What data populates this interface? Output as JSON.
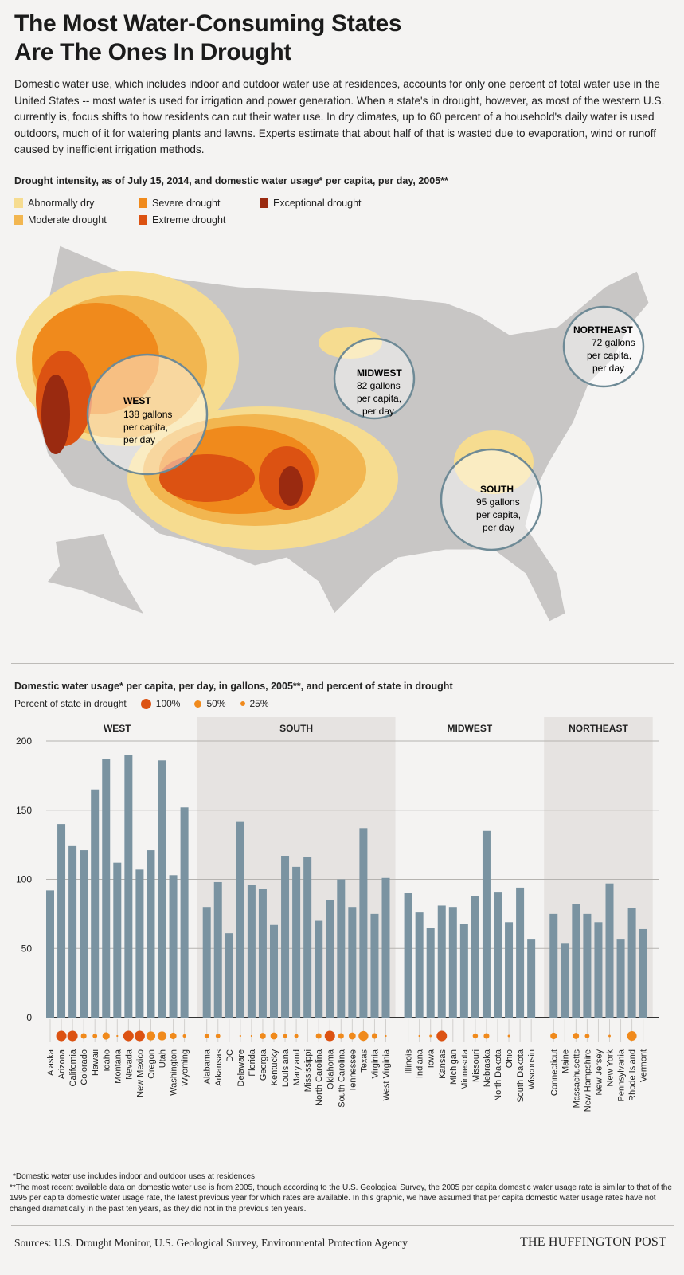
{
  "title_line1": "The Most Water-Consuming States",
  "title_line2": "Are The Ones In Drought",
  "intro": "Domestic water use, which includes indoor and outdoor water use at residences, accounts for only one percent of total water use in the United States -- most water is used for irrigation and power generation. When a state's in drought, however, as most of the western U.S. currently is, focus shifts to how residents can cut their water use. In dry climates, up to 60 percent of a household's daily water is used outdoors, much of it for watering plants and lawns. Experts estimate that about half of that is wasted due to evaporation, wind or runoff caused by inefficient irrigation methods.",
  "map": {
    "heading": "Drought intensity, as of July 15, 2014, and domestic water usage* per capita, per day, 2005**",
    "legend": [
      {
        "label": "Abnormally dry",
        "color": "#f6dc90"
      },
      {
        "label": "Moderate drought",
        "color": "#f2b650"
      },
      {
        "label": "Severe drought",
        "color": "#f08a1c"
      },
      {
        "label": "Extreme drought",
        "color": "#dc5212"
      },
      {
        "label": "Exceptional drought",
        "color": "#9a2a10"
      }
    ],
    "regions": [
      {
        "name": "WEST",
        "l1": "138 gallons",
        "l2": "per capita,",
        "l3": "per day"
      },
      {
        "name": "MIDWEST",
        "l1": "82 gallons",
        "l2": "per capita,",
        "l3": "per day"
      },
      {
        "name": "NORTHEAST",
        "l1": "72 gallons",
        "l2": "per capita,",
        "l3": "per day"
      },
      {
        "name": "SOUTH",
        "l1": "95 gallons",
        "l2": "per capita,",
        "l3": "per day"
      }
    ]
  },
  "chart_data": {
    "type": "bar",
    "title": "Domestic water usage* per capita, per day, in gallons, 2005**, and percent of state in drought",
    "dot_legend_label": "Percent of state in drought",
    "dot_legend": [
      {
        "label": "100%",
        "value": 100
      },
      {
        "label": "50%",
        "value": 50
      },
      {
        "label": "25%",
        "value": 25
      }
    ],
    "ylim": [
      0,
      200
    ],
    "yticks": [
      "0",
      "50",
      "100",
      "150",
      "200"
    ],
    "grid": true,
    "bar_color": "#7a93a1",
    "dot_color": "#f08a1c",
    "dot_color_full": "#dc5212",
    "groups": [
      {
        "name": "WEST",
        "shaded": false,
        "states": [
          {
            "name": "Alaska",
            "value": 92,
            "drought": 0
          },
          {
            "name": "Arizona",
            "value": 140,
            "drought": 100
          },
          {
            "name": "California",
            "value": 124,
            "drought": 100
          },
          {
            "name": "Colorado",
            "value": 121,
            "drought": 30
          },
          {
            "name": "Hawaii",
            "value": 165,
            "drought": 20
          },
          {
            "name": "Idaho",
            "value": 187,
            "drought": 50
          },
          {
            "name": "Montana",
            "value": 112,
            "drought": 3
          },
          {
            "name": "Nevada",
            "value": 190,
            "drought": 100
          },
          {
            "name": "New Mexico",
            "value": 107,
            "drought": 100
          },
          {
            "name": "Oregon",
            "value": 121,
            "drought": 75
          },
          {
            "name": "Utah",
            "value": 186,
            "drought": 75
          },
          {
            "name": "Washington",
            "value": 103,
            "drought": 40
          },
          {
            "name": "Wyoming",
            "value": 152,
            "drought": 10
          }
        ]
      },
      {
        "name": "SOUTH",
        "shaded": true,
        "states": [
          {
            "name": "Alabama",
            "value": 80,
            "drought": 20
          },
          {
            "name": "Arkansas",
            "value": 98,
            "drought": 20
          },
          {
            "name": "DC",
            "value": 61,
            "drought": 0
          },
          {
            "name": "Delaware",
            "value": 142,
            "drought": 3
          },
          {
            "name": "Florida",
            "value": 96,
            "drought": 3
          },
          {
            "name": "Georgia",
            "value": 93,
            "drought": 35
          },
          {
            "name": "Kentucky",
            "value": 67,
            "drought": 45
          },
          {
            "name": "Louisiana",
            "value": 117,
            "drought": 15
          },
          {
            "name": "Maryland",
            "value": 109,
            "drought": 15
          },
          {
            "name": "Mississippi",
            "value": 116,
            "drought": 0
          },
          {
            "name": "North Carolina",
            "value": 70,
            "drought": 30
          },
          {
            "name": "Oklahoma",
            "value": 85,
            "drought": 100
          },
          {
            "name": "South Carolina",
            "value": 100,
            "drought": 30
          },
          {
            "name": "Tennessee",
            "value": 80,
            "drought": 45
          },
          {
            "name": "Texas",
            "value": 137,
            "drought": 90
          },
          {
            "name": "Virginia",
            "value": 75,
            "drought": 30
          },
          {
            "name": "West Virginia",
            "value": 101,
            "drought": 3
          }
        ]
      },
      {
        "name": "MIDWEST",
        "shaded": false,
        "states": [
          {
            "name": "Illinois",
            "value": 90,
            "drought": 0
          },
          {
            "name": "Indiana",
            "value": 76,
            "drought": 3
          },
          {
            "name": "Iowa",
            "value": 65,
            "drought": 5
          },
          {
            "name": "Kansas",
            "value": 81,
            "drought": 100
          },
          {
            "name": "Michigan",
            "value": 80,
            "drought": 0
          },
          {
            "name": "Minnesota",
            "value": 68,
            "drought": 0
          },
          {
            "name": "Missouri",
            "value": 88,
            "drought": 25
          },
          {
            "name": "Nebraska",
            "value": 135,
            "drought": 30
          },
          {
            "name": "North Dakota",
            "value": 91,
            "drought": 0
          },
          {
            "name": "Ohio",
            "value": 69,
            "drought": 5
          },
          {
            "name": "South Dakota",
            "value": 94,
            "drought": 0
          },
          {
            "name": "Wisconsin",
            "value": 57,
            "drought": 0
          }
        ]
      },
      {
        "name": "NORTHEAST",
        "shaded": true,
        "states": [
          {
            "name": "Connecticut",
            "value": 75,
            "drought": 40
          },
          {
            "name": "Maine",
            "value": 54,
            "drought": 0
          },
          {
            "name": "Massachusetts",
            "value": 82,
            "drought": 35
          },
          {
            "name": "New Hampshire",
            "value": 75,
            "drought": 20
          },
          {
            "name": "New Jersey",
            "value": 69,
            "drought": 0
          },
          {
            "name": "New York",
            "value": 97,
            "drought": 5
          },
          {
            "name": "Pennsylvania",
            "value": 57,
            "drought": 0
          },
          {
            "name": "Rhode Island",
            "value": 79,
            "drought": 85
          },
          {
            "name": "Vermont",
            "value": 64,
            "drought": 0
          }
        ]
      }
    ]
  },
  "footnote1": "*Domestic water use includes indoor and outdoor uses at residences",
  "footnote2": "**The most recent available data on domestic water use is from 2005, though according to the U.S. Geological Survey, the 2005 per capita domestic water usage rate is similar to that of the 1995 per capita domestic water usage rate, the latest previous year for which rates are available. In this graphic, we have assumed that per capita domestic water usage rates have not changed dramatically in the past ten years, as they did not in the previous ten years.",
  "sources": "Sources: U.S. Drought Monitor, U.S. Geological Survey, Environmental Protection Agency",
  "brand": "THE HUFFINGTON POST"
}
